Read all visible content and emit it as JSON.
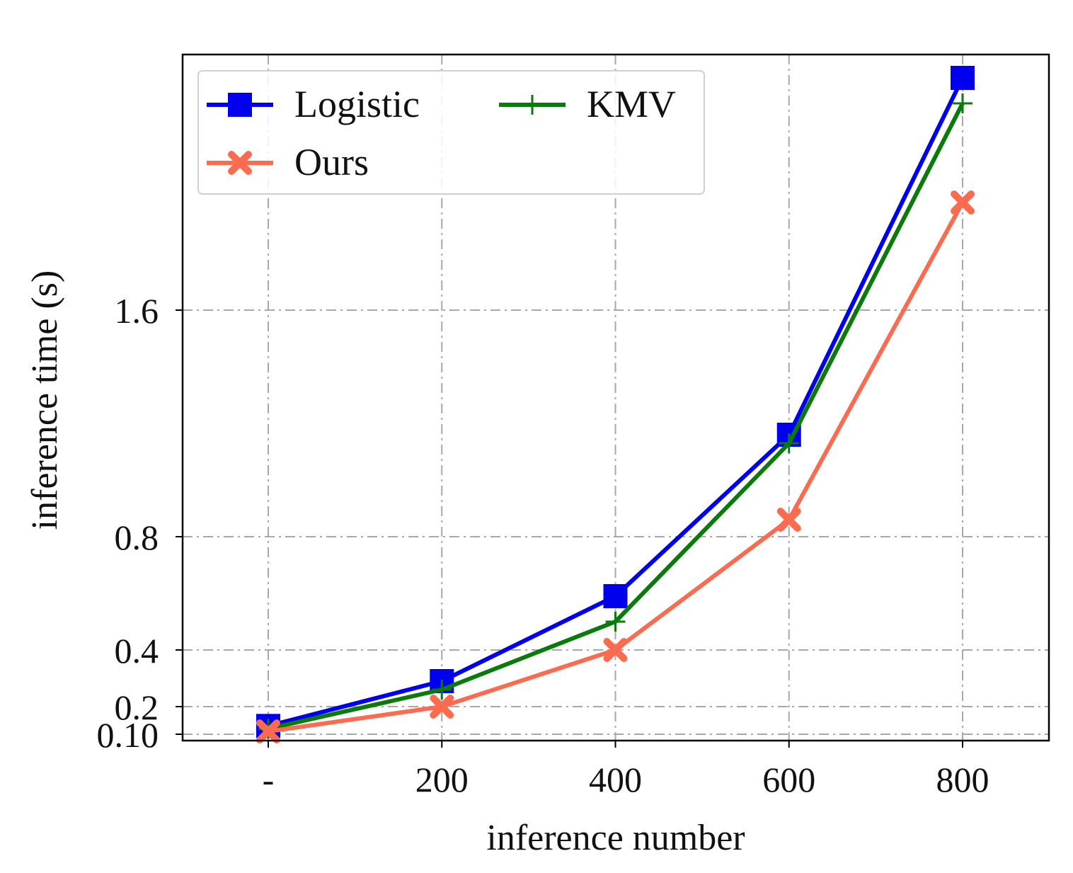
{
  "chart_data": {
    "type": "line",
    "title": "",
    "xlabel": "inference number",
    "ylabel": "inference time (s)",
    "categories": [
      "-",
      "200",
      "400",
      "600",
      "800"
    ],
    "x": [
      0,
      200,
      400,
      600,
      800
    ],
    "xlim": [
      -100,
      900
    ],
    "ylim": [
      0.08,
      2.5
    ],
    "yticks": [
      0.1,
      0.2,
      0.4,
      0.8,
      1.6
    ],
    "ytick_labels": [
      "0.10",
      "0.2",
      "0.4",
      "0.8",
      "1.6"
    ],
    "grid": true,
    "legend_position": "top-left",
    "series": [
      {
        "name": "Logistic",
        "color": "#0000ee",
        "marker": "square",
        "values": [
          0.13,
          0.29,
          0.59,
          1.16,
          2.42
        ]
      },
      {
        "name": "Ours",
        "color": "#fa6b50",
        "marker": "x",
        "values": [
          0.11,
          0.2,
          0.4,
          0.86,
          1.98
        ]
      },
      {
        "name": "KMV",
        "color": "#0a7a0a",
        "marker": "plus",
        "values": [
          0.12,
          0.26,
          0.5,
          1.13,
          2.33
        ]
      }
    ]
  }
}
